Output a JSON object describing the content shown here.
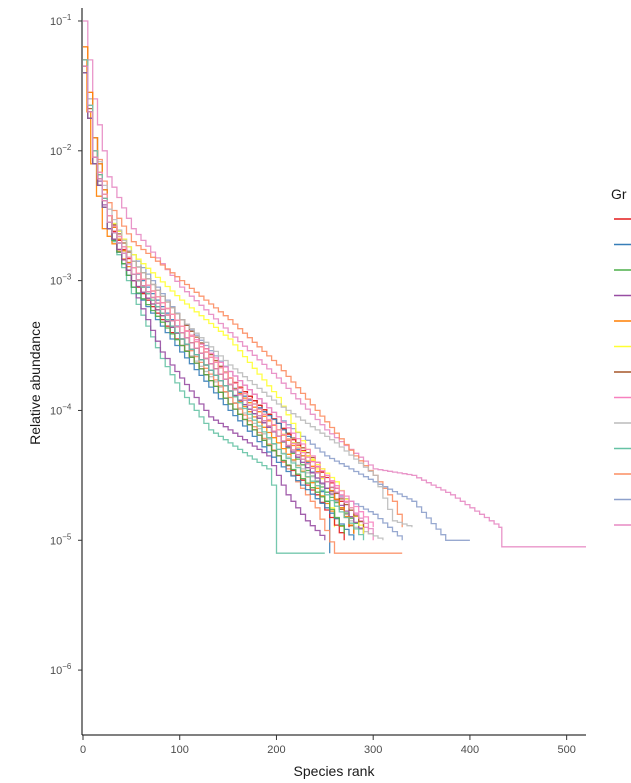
{
  "chart_data": {
    "type": "line",
    "subtype": "rank-abundance step curves",
    "title": "",
    "xlabel": "Species rank",
    "ylabel": "Relative abundance",
    "xlim": [
      0,
      520
    ],
    "ylim_log10": [
      -6.5,
      -0.9
    ],
    "x_ticks": [
      0,
      100,
      200,
      300,
      400,
      500
    ],
    "y_ticks": [
      {
        "exp": -1,
        "base": "10",
        "sup": "−1"
      },
      {
        "exp": -2,
        "base": "10",
        "sup": "−2"
      },
      {
        "exp": -3,
        "base": "10",
        "sup": "−3"
      },
      {
        "exp": -4,
        "base": "10",
        "sup": "−4"
      },
      {
        "exp": -5,
        "base": "10",
        "sup": "−5"
      },
      {
        "exp": -6,
        "base": "10",
        "sup": "−6"
      }
    ],
    "grid": false,
    "legend": {
      "title": "Gr",
      "position": "right",
      "entries": [
        {
          "color": "#e41a1c"
        },
        {
          "color": "#377eb8"
        },
        {
          "color": "#4daf4a"
        },
        {
          "color": "#984ea3"
        },
        {
          "color": "#ff7f00"
        },
        {
          "color": "#ffff33"
        },
        {
          "color": "#a65628"
        },
        {
          "color": "#f781bf"
        },
        {
          "color": "#bbbbbb"
        },
        {
          "color": "#66c2a5"
        },
        {
          "color": "#fc8d62"
        },
        {
          "color": "#8da0cb"
        },
        {
          "color": "#e78ac3"
        }
      ]
    },
    "series": [
      {
        "color": "#e78ac3",
        "points": [
          [
            0,
            -1.0
          ],
          [
            10,
            -1.6
          ],
          [
            25,
            -2.2
          ],
          [
            50,
            -2.6
          ],
          [
            100,
            -3.05
          ],
          [
            150,
            -3.4
          ],
          [
            200,
            -3.75
          ],
          [
            250,
            -4.15
          ],
          [
            300,
            -4.45
          ],
          [
            340,
            -4.5
          ],
          [
            380,
            -4.65
          ],
          [
            430,
            -4.9
          ],
          [
            433,
            -5.05
          ],
          [
            520,
            -5.05
          ]
        ]
      },
      {
        "color": "#fc8d62",
        "points": [
          [
            0,
            -1.2
          ],
          [
            10,
            -1.9
          ],
          [
            25,
            -2.4
          ],
          [
            50,
            -2.7
          ],
          [
            100,
            -3.0
          ],
          [
            150,
            -3.3
          ],
          [
            200,
            -3.65
          ],
          [
            240,
            -4.0
          ],
          [
            280,
            -4.35
          ],
          [
            300,
            -4.5
          ],
          [
            320,
            -4.7
          ],
          [
            330,
            -4.9
          ]
        ]
      },
      {
        "color": "#8da0cb",
        "points": [
          [
            0,
            -1.3
          ],
          [
            10,
            -1.9
          ],
          [
            25,
            -2.5
          ],
          [
            50,
            -2.8
          ],
          [
            100,
            -3.3
          ],
          [
            150,
            -3.7
          ],
          [
            200,
            -4.05
          ],
          [
            250,
            -4.35
          ],
          [
            300,
            -4.55
          ],
          [
            340,
            -4.7
          ],
          [
            375,
            -5.0
          ],
          [
            400,
            -5.0
          ]
        ]
      },
      {
        "color": "#a65628",
        "points": [
          [
            0,
            -1.35
          ],
          [
            10,
            -2.0
          ],
          [
            25,
            -2.5
          ],
          [
            50,
            -2.85
          ],
          [
            100,
            -3.3
          ],
          [
            150,
            -3.75
          ],
          [
            200,
            -4.1
          ],
          [
            240,
            -4.4
          ],
          [
            260,
            -4.7
          ],
          [
            280,
            -4.95
          ]
        ]
      },
      {
        "color": "#ffff33",
        "points": [
          [
            0,
            -1.3
          ],
          [
            10,
            -2.0
          ],
          [
            25,
            -2.5
          ],
          [
            50,
            -2.8
          ],
          [
            100,
            -3.15
          ],
          [
            150,
            -3.45
          ],
          [
            200,
            -3.9
          ],
          [
            230,
            -4.3
          ],
          [
            250,
            -4.6
          ],
          [
            260,
            -4.9
          ]
        ]
      },
      {
        "color": "#bbbbbb",
        "points": [
          [
            0,
            -1.3
          ],
          [
            10,
            -1.9
          ],
          [
            25,
            -2.45
          ],
          [
            50,
            -2.85
          ],
          [
            100,
            -3.3
          ],
          [
            150,
            -3.65
          ],
          [
            200,
            -3.95
          ],
          [
            260,
            -4.25
          ],
          [
            300,
            -4.5
          ],
          [
            320,
            -4.85
          ],
          [
            340,
            -4.9
          ]
        ]
      },
      {
        "color": "#66c2a5",
        "points": [
          [
            0,
            -1.4
          ],
          [
            10,
            -2.1
          ],
          [
            25,
            -2.6
          ],
          [
            50,
            -3.1
          ],
          [
            80,
            -3.6
          ],
          [
            100,
            -3.85
          ],
          [
            130,
            -4.15
          ],
          [
            160,
            -4.3
          ],
          [
            190,
            -4.45
          ],
          [
            200,
            -4.7
          ],
          [
            200,
            -5.1
          ],
          [
            250,
            -5.1
          ]
        ]
      },
      {
        "color": "#984ea3",
        "points": [
          [
            0,
            -1.35
          ],
          [
            10,
            -2.05
          ],
          [
            25,
            -2.6
          ],
          [
            50,
            -3.05
          ],
          [
            80,
            -3.55
          ],
          [
            100,
            -3.75
          ],
          [
            130,
            -4.05
          ],
          [
            160,
            -4.2
          ],
          [
            190,
            -4.35
          ],
          [
            210,
            -4.65
          ],
          [
            230,
            -4.85
          ],
          [
            250,
            -5.0
          ]
        ]
      },
      {
        "color": "#e41a1c",
        "points": [
          [
            0,
            -1.3
          ],
          [
            10,
            -2.0
          ],
          [
            25,
            -2.55
          ],
          [
            50,
            -2.9
          ],
          [
            100,
            -3.35
          ],
          [
            150,
            -3.75
          ],
          [
            200,
            -4.1
          ],
          [
            230,
            -4.35
          ],
          [
            260,
            -4.6
          ],
          [
            275,
            -4.9
          ]
        ]
      },
      {
        "color": "#377eb8",
        "points": [
          [
            0,
            -1.3
          ],
          [
            10,
            -2.0
          ],
          [
            25,
            -2.5
          ],
          [
            50,
            -2.9
          ],
          [
            100,
            -3.4
          ],
          [
            150,
            -3.8
          ],
          [
            200,
            -4.1
          ],
          [
            230,
            -4.4
          ],
          [
            250,
            -4.7
          ],
          [
            255,
            -5.1
          ]
        ]
      },
      {
        "color": "#4daf4a",
        "points": [
          [
            0,
            -1.3
          ],
          [
            10,
            -2.0
          ],
          [
            25,
            -2.5
          ],
          [
            50,
            -2.95
          ],
          [
            100,
            -3.45
          ],
          [
            150,
            -3.85
          ],
          [
            200,
            -4.2
          ],
          [
            240,
            -4.55
          ],
          [
            290,
            -4.95
          ]
        ]
      },
      {
        "color": "#ff7f00",
        "points": [
          [
            0,
            -1.3
          ],
          [
            8,
            -2.1
          ],
          [
            20,
            -2.6
          ],
          [
            50,
            -2.95
          ],
          [
            100,
            -3.45
          ],
          [
            150,
            -3.85
          ],
          [
            200,
            -4.25
          ],
          [
            240,
            -4.6
          ],
          [
            270,
            -4.95
          ]
        ]
      },
      {
        "color": "#f781bf",
        "points": [
          [
            0,
            -1.3
          ],
          [
            10,
            -2.0
          ],
          [
            25,
            -2.5
          ],
          [
            50,
            -2.9
          ],
          [
            100,
            -3.35
          ],
          [
            150,
            -3.7
          ],
          [
            200,
            -4.05
          ],
          [
            230,
            -4.3
          ],
          [
            260,
            -4.6
          ],
          [
            300,
            -5.0
          ]
        ]
      },
      {
        "color": "#bbbbbb",
        "points": [
          [
            0,
            -1.4
          ],
          [
            10,
            -2.1
          ],
          [
            25,
            -2.6
          ],
          [
            50,
            -3.0
          ],
          [
            100,
            -3.5
          ],
          [
            150,
            -3.9
          ],
          [
            200,
            -4.3
          ],
          [
            250,
            -4.6
          ],
          [
            280,
            -4.9
          ],
          [
            310,
            -5.0
          ]
        ]
      },
      {
        "color": "#fc8d62",
        "points": [
          [
            0,
            -1.4
          ],
          [
            10,
            -2.1
          ],
          [
            25,
            -2.6
          ],
          [
            50,
            -3.0
          ],
          [
            100,
            -3.45
          ],
          [
            150,
            -3.9
          ],
          [
            200,
            -4.35
          ],
          [
            240,
            -4.75
          ],
          [
            260,
            -5.1
          ],
          [
            330,
            -5.1
          ]
        ]
      },
      {
        "color": "#8da0cb",
        "points": [
          [
            0,
            -1.35
          ],
          [
            10,
            -2.05
          ],
          [
            25,
            -2.55
          ],
          [
            50,
            -2.95
          ],
          [
            100,
            -3.45
          ],
          [
            150,
            -3.85
          ],
          [
            200,
            -4.2
          ],
          [
            250,
            -4.6
          ],
          [
            300,
            -4.8
          ],
          [
            330,
            -5.0
          ]
        ]
      },
      {
        "color": "#e41a1c",
        "points": [
          [
            0,
            -1.4
          ],
          [
            10,
            -2.1
          ],
          [
            25,
            -2.6
          ],
          [
            50,
            -3.0
          ],
          [
            100,
            -3.5
          ],
          [
            150,
            -3.95
          ],
          [
            200,
            -4.35
          ],
          [
            240,
            -4.65
          ],
          [
            270,
            -5.0
          ]
        ]
      },
      {
        "color": "#377eb8",
        "points": [
          [
            0,
            -1.4
          ],
          [
            10,
            -2.1
          ],
          [
            25,
            -2.6
          ],
          [
            50,
            -3.05
          ],
          [
            100,
            -3.55
          ],
          [
            150,
            -4.0
          ],
          [
            200,
            -4.4
          ],
          [
            250,
            -4.75
          ],
          [
            280,
            -5.0
          ]
        ]
      },
      {
        "color": "#4daf4a",
        "points": [
          [
            0,
            -1.4
          ],
          [
            10,
            -2.1
          ],
          [
            25,
            -2.6
          ],
          [
            50,
            -3.05
          ],
          [
            100,
            -3.5
          ],
          [
            150,
            -3.95
          ],
          [
            200,
            -4.35
          ],
          [
            250,
            -4.7
          ],
          [
            270,
            -4.95
          ]
        ]
      },
      {
        "color": "#984ea3",
        "points": [
          [
            0,
            -1.4
          ],
          [
            10,
            -2.1
          ],
          [
            25,
            -2.6
          ],
          [
            50,
            -3.0
          ],
          [
            100,
            -3.45
          ],
          [
            150,
            -3.85
          ],
          [
            200,
            -4.2
          ],
          [
            250,
            -4.6
          ],
          [
            290,
            -4.95
          ]
        ]
      },
      {
        "color": "#ff7f00",
        "points": [
          [
            0,
            -1.2
          ],
          [
            10,
            -1.9
          ],
          [
            25,
            -2.5
          ],
          [
            50,
            -2.95
          ],
          [
            100,
            -3.4
          ],
          [
            150,
            -3.8
          ],
          [
            200,
            -4.15
          ],
          [
            250,
            -4.55
          ],
          [
            280,
            -4.95
          ]
        ]
      },
      {
        "color": "#ffff33",
        "points": [
          [
            0,
            -1.3
          ],
          [
            10,
            -2.0
          ],
          [
            25,
            -2.5
          ],
          [
            50,
            -2.9
          ],
          [
            100,
            -3.35
          ],
          [
            150,
            -3.75
          ],
          [
            200,
            -4.15
          ],
          [
            260,
            -4.55
          ],
          [
            290,
            -4.95
          ]
        ]
      },
      {
        "color": "#a65628",
        "points": [
          [
            0,
            -1.35
          ],
          [
            10,
            -2.05
          ],
          [
            25,
            -2.55
          ],
          [
            50,
            -2.95
          ],
          [
            100,
            -3.4
          ],
          [
            150,
            -3.8
          ],
          [
            200,
            -4.2
          ],
          [
            250,
            -4.55
          ],
          [
            290,
            -4.9
          ]
        ]
      },
      {
        "color": "#f781bf",
        "points": [
          [
            0,
            -1.3
          ],
          [
            10,
            -2.0
          ],
          [
            25,
            -2.5
          ],
          [
            50,
            -2.9
          ],
          [
            100,
            -3.35
          ],
          [
            150,
            -3.75
          ],
          [
            200,
            -4.15
          ],
          [
            250,
            -4.5
          ],
          [
            300,
            -4.9
          ]
        ]
      },
      {
        "color": "#66c2a5",
        "points": [
          [
            0,
            -1.3
          ],
          [
            10,
            -2.0
          ],
          [
            25,
            -2.55
          ],
          [
            50,
            -2.95
          ],
          [
            100,
            -3.45
          ],
          [
            150,
            -3.85
          ],
          [
            200,
            -4.3
          ],
          [
            250,
            -4.65
          ],
          [
            290,
            -5.0
          ]
        ]
      },
      {
        "color": "#e78ac3",
        "points": [
          [
            0,
            -1.35
          ],
          [
            10,
            -2.05
          ],
          [
            25,
            -2.55
          ],
          [
            50,
            -2.95
          ],
          [
            100,
            -3.4
          ],
          [
            150,
            -3.8
          ],
          [
            200,
            -4.2
          ],
          [
            250,
            -4.55
          ],
          [
            300,
            -4.95
          ]
        ]
      }
    ]
  }
}
